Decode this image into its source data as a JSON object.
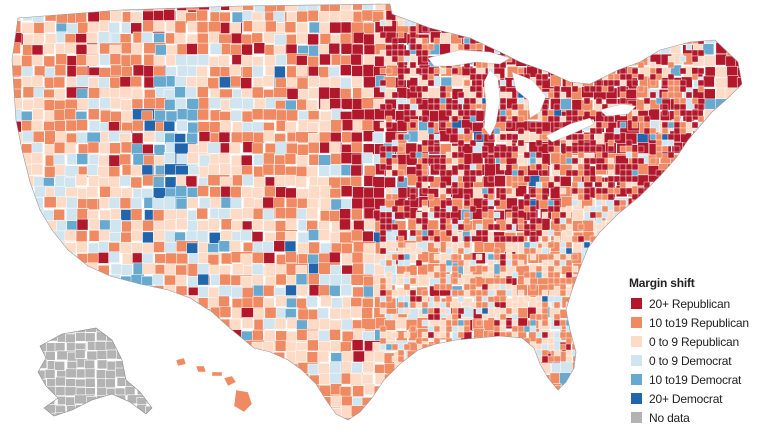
{
  "legend": {
    "title": "Margin shift",
    "items": [
      {
        "label": "20+ Republican",
        "color": "#b2182b"
      },
      {
        "label": "10 to19 Republican",
        "color": "#ef8a62"
      },
      {
        "label": "0 to 9 Republican",
        "color": "#fddbc7"
      },
      {
        "label": "0 to 9 Democrat",
        "color": "#d1e5f0"
      },
      {
        "label": "10 to19 Democrat",
        "color": "#67a9cf"
      },
      {
        "label": "20+ Democrat",
        "color": "#2166ac"
      },
      {
        "label": "No data",
        "color": "#b3b3b3"
      }
    ]
  },
  "map": {
    "subject": "US county margin shift",
    "regions_shown": [
      "contiguous-us",
      "alaska",
      "hawaii"
    ],
    "county_borders": "#ffffff",
    "lake_color": "#ffffff"
  }
}
